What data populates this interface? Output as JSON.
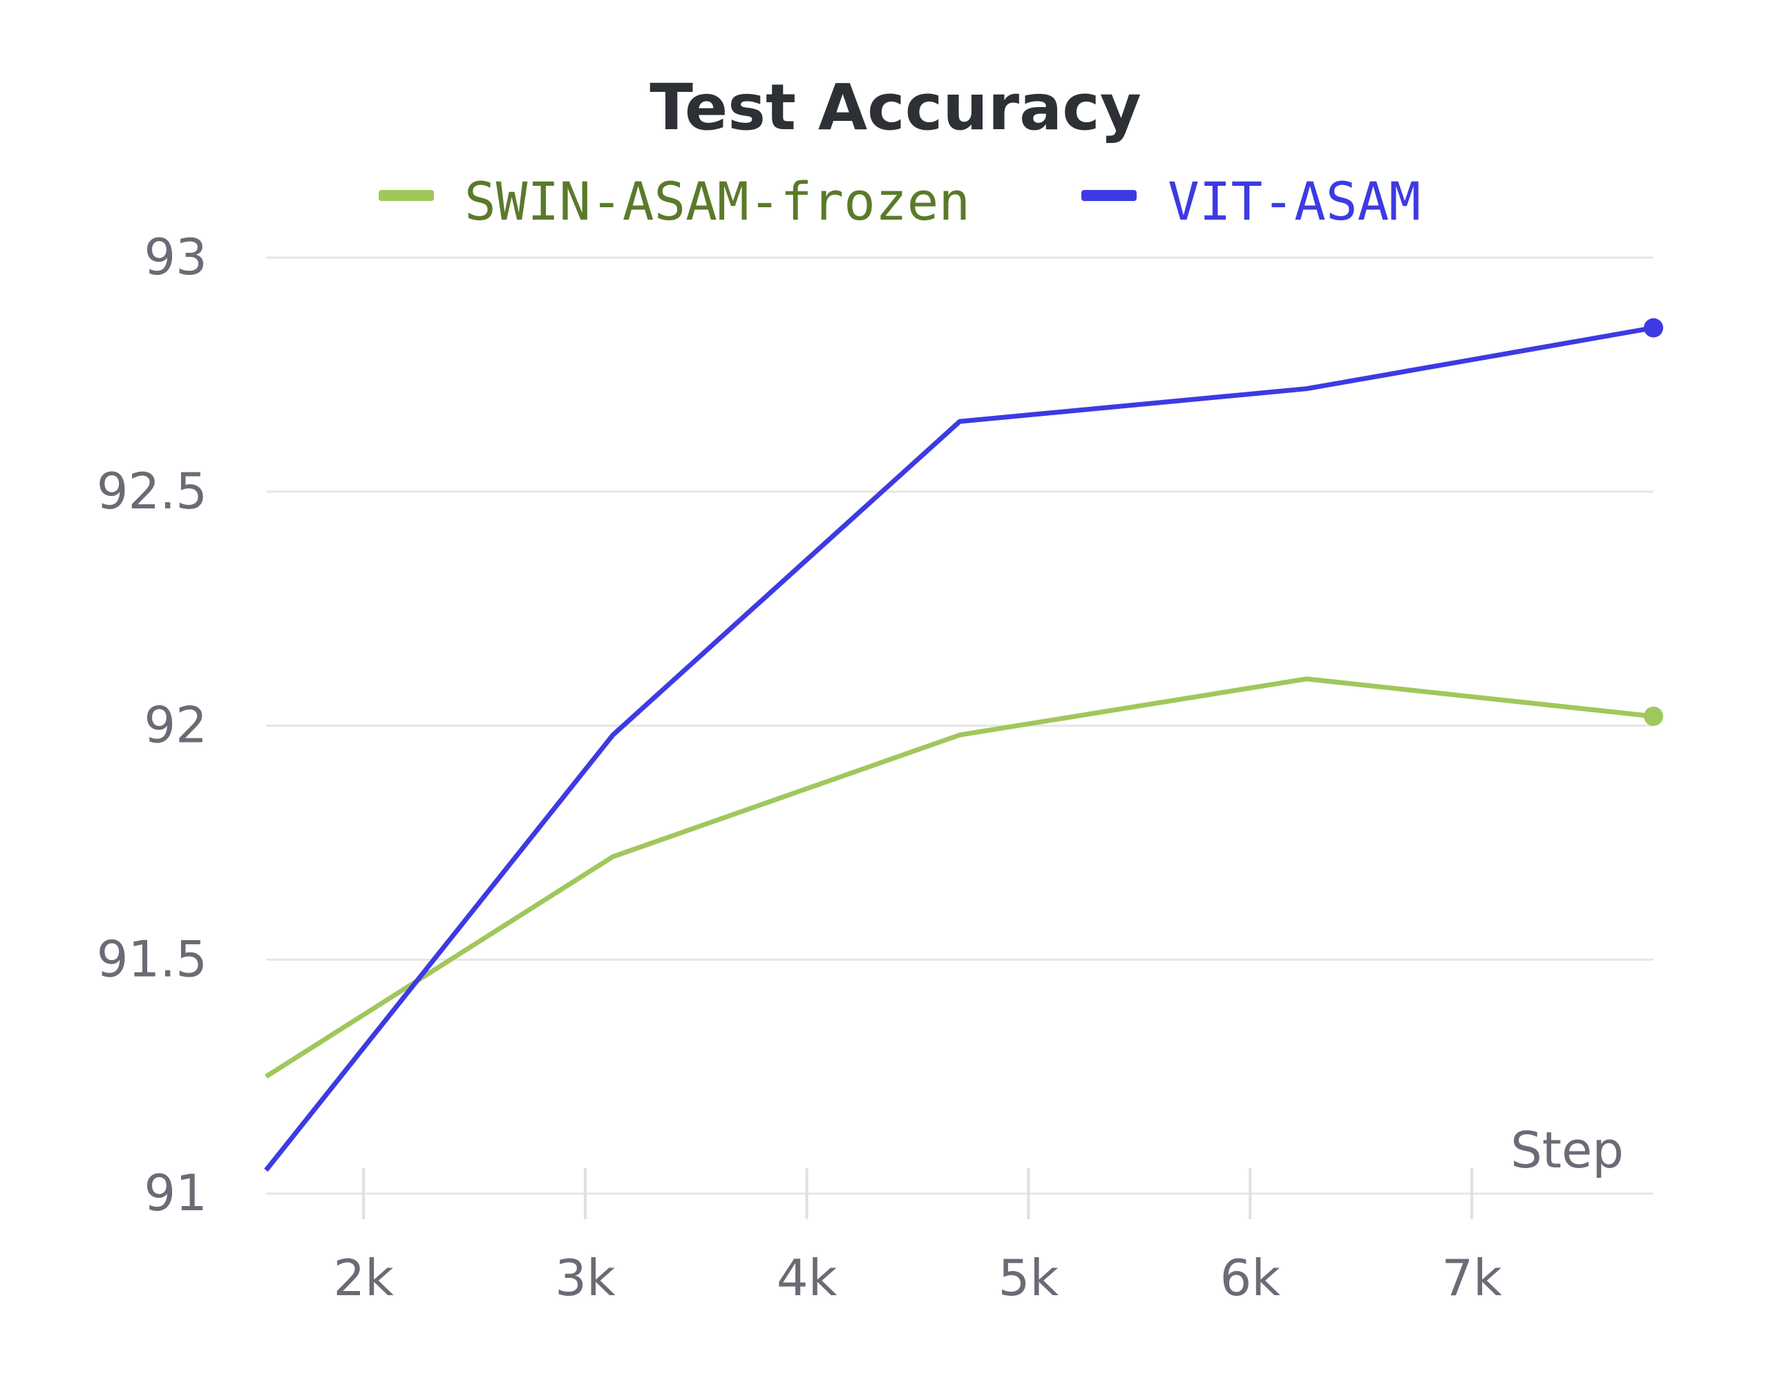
{
  "chart_data": {
    "type": "line",
    "title": "Test Accuracy",
    "xlabel": "Step",
    "ylabel": "",
    "xlim": [
      1560,
      7820
    ],
    "ylim": [
      91,
      93
    ],
    "x_ticks": [
      2000,
      3000,
      4000,
      5000,
      6000,
      7000
    ],
    "x_tick_labels": [
      "2k",
      "3k",
      "4k",
      "5k",
      "6k",
      "7k"
    ],
    "y_ticks": [
      91,
      91.5,
      92,
      92.5,
      93
    ],
    "y_tick_labels": [
      "91",
      "91.5",
      "92",
      "92.5",
      "93"
    ],
    "grid": "horizontal",
    "legend_position": "top",
    "series": [
      {
        "name": "SWIN-ASAM-frozen",
        "color": "#a0c75c",
        "text_color": "#5a7a2a",
        "x": [
          1560,
          3125,
          4690,
          6255,
          7820
        ],
        "y": [
          91.25,
          91.72,
          91.98,
          92.1,
          92.02
        ]
      },
      {
        "name": "VIT-ASAM",
        "color": "#3d3ae3",
        "text_color": "#3d3ae3",
        "x": [
          1560,
          3125,
          4690,
          6255,
          7820
        ],
        "y": [
          91.05,
          91.98,
          92.65,
          92.72,
          92.85
        ]
      }
    ]
  }
}
